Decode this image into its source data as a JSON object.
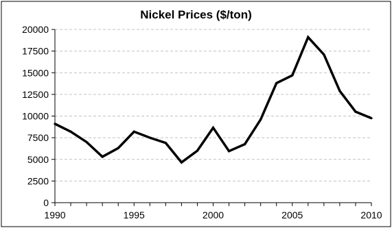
{
  "chart_data": {
    "type": "line",
    "title": "Nickel Prices ($/ton)",
    "xlabel": "",
    "ylabel": "",
    "x": [
      1990,
      1991,
      1992,
      1993,
      1994,
      1995,
      1996,
      1997,
      1998,
      1999,
      2000,
      2001,
      2002,
      2003,
      2004,
      2005,
      2006,
      2007,
      2008,
      2009,
      2010
    ],
    "series": [
      {
        "values": [
          9100,
          8200,
          7000,
          5300,
          6300,
          8200,
          7500,
          6900,
          4650,
          6000,
          8650,
          5950,
          6750,
          9600,
          13800,
          14700,
          19100,
          17100,
          12900,
          10500,
          9750
        ]
      }
    ],
    "xlim": [
      1990,
      2010
    ],
    "ylim": [
      0,
      20000
    ],
    "x_ticks": [
      "1990",
      "1995",
      "2000",
      "2005",
      "2010"
    ],
    "y_ticks": [
      "0",
      "2500",
      "5000",
      "7500",
      "10000",
      "12500",
      "15000",
      "17500",
      "20000"
    ],
    "grid": "horizontal dashed",
    "legend": "none",
    "colors": {
      "line": "#000000",
      "grid": "#c0c0c0",
      "axis": "#000000",
      "frame": "#000000"
    }
  }
}
